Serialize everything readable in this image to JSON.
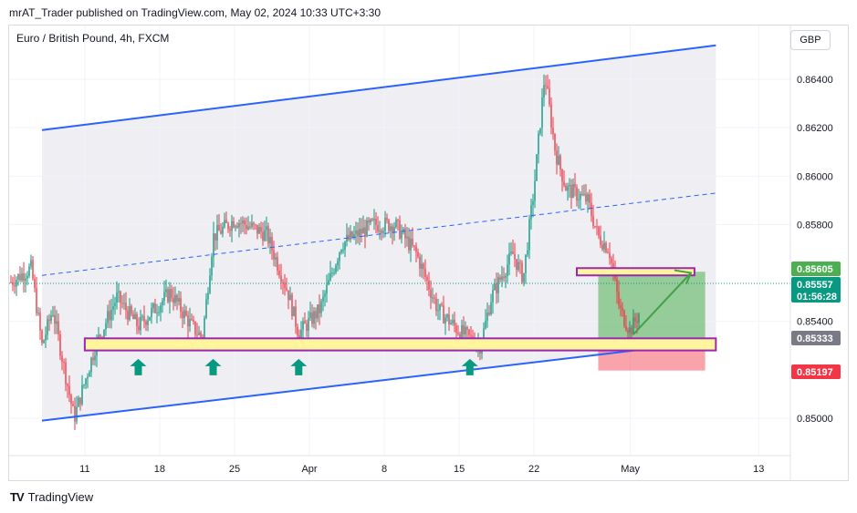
{
  "header": {
    "text": "mrAT_Trader published on TradingView.com, May 02, 2024 10:33 UTC+3:30"
  },
  "symbol": {
    "text": "Euro / British Pound, 4h, FXCM"
  },
  "currency": {
    "label": "GBP"
  },
  "brand": {
    "name": "TradingView",
    "logo": "TV"
  },
  "chart_data": {
    "type": "candlestick",
    "symbol": "Euro / British Pound",
    "interval": "4h",
    "source": "FXCM",
    "y_axis": {
      "ylim": [
        0.8482,
        0.8658
      ],
      "ticks": [
        "0.85000",
        "0.85400",
        "0.85800",
        "0.86000",
        "0.86200",
        "0.86400"
      ]
    },
    "x_axis": {
      "ticks": [
        "11",
        "18",
        "25",
        "Apr",
        "8",
        "15",
        "22",
        "May",
        "13"
      ]
    },
    "price_labels": {
      "target": {
        "value": "0.85605",
        "color": "#4caf50"
      },
      "current": {
        "value": "0.85557",
        "countdown": "01:56:28",
        "color": "#089981"
      },
      "entry": {
        "value": "0.85333",
        "color": "#787b86"
      },
      "stop": {
        "value": "0.85197",
        "color": "#f23645"
      }
    },
    "channel": {
      "upper": [
        [
          "Mar 7",
          0.8619
        ],
        [
          "May 9",
          0.8654
        ]
      ],
      "lower": [
        [
          "Mar 7",
          0.8499
        ],
        [
          "May 9",
          0.8532
        ]
      ],
      "midline": [
        [
          "Mar 7",
          0.8559
        ],
        [
          "May 9",
          0.8593
        ]
      ]
    },
    "zones": [
      {
        "name": "support",
        "from": "Mar 11",
        "to": "May 9",
        "low": 0.8528,
        "high": 0.8533
      },
      {
        "name": "resistance",
        "from": "Apr 26",
        "to": "May 7",
        "low": 0.8559,
        "high": 0.8562
      }
    ],
    "position": {
      "type": "long",
      "entry": 0.85333,
      "target": 0.85605,
      "stop": 0.85197,
      "from": "Apr 28",
      "to": "May 8"
    },
    "support_arrows": [
      "Mar 16",
      "Mar 23",
      "Mar 31",
      "Apr 16"
    ],
    "colors": {
      "up": "#089981",
      "down": "#f23645",
      "channel": "#2962ff",
      "zone_fill": "#fff59d",
      "zone_border": "#9c27b0",
      "profit": "#4caf50",
      "loss": "#f23645",
      "arrow": "#089981"
    }
  }
}
